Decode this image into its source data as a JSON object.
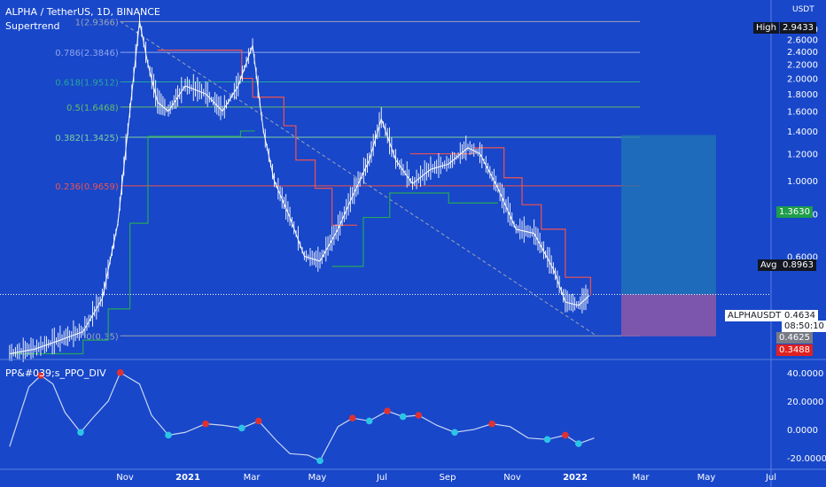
{
  "header": {
    "symbol_line": "ALPHA / TetherUS, 1D, BINANCE",
    "indicator": "Supertrend",
    "currency": "USDT",
    "sub_indicator": "PP&#039;s_PPO_DIV"
  },
  "price_tags": {
    "high_label": "High",
    "high_value": "2.9433",
    "target_value": "1.3630",
    "avg_label": "Avg",
    "avg_value": "0.8963",
    "symbol_label": "ALPHAUSDT",
    "last_value": "0.4634",
    "countdown": "08:50:10",
    "level2_value": "0.4625",
    "stop_value": "0.3488"
  },
  "colors": {
    "background": "#1847c9",
    "candle": "#ffffff",
    "supertrend_up": "#26a65b",
    "supertrend_down": "#ef5350",
    "fib_0": "#9aa4b6",
    "fib_0236": "#ef5350",
    "fib_0382": "#7fcf9e",
    "fib_05": "#66bb6a",
    "fib_0618": "#26a69a",
    "fib_0786": "#90a4ec",
    "fib_1": "#9aa4b6",
    "target_box": "#1f77b4",
    "stop_box": "#8e59a8",
    "ppo_line": "#c9d6f5",
    "bull_dot": "#2cc5e6",
    "bear_dot": "#e03131"
  },
  "chart_data": [
    {
      "type": "line",
      "title": "ALPHA / TetherUS, 1D, BINANCE",
      "yscale": "log",
      "ylim": [
        0.3,
        3.05
      ],
      "y_ticks": [
        "2.8000",
        "2.6000",
        "2.4000",
        "2.2000",
        "2.0000",
        "1.8000",
        "1.6000",
        "1.4000",
        "1.2000",
        "1.0000",
        "0.8000",
        "0.6000"
      ],
      "x_ticks": [
        "Nov",
        "2021",
        "Mar",
        "May",
        "Jul",
        "Sep",
        "Nov",
        "2022",
        "Mar",
        "May",
        "Jul"
      ],
      "xlim": [
        "2020-10-12",
        "2022-07-15"
      ],
      "fib_levels": [
        {
          "ratio": "1",
          "value": "2.9366",
          "label": "1(2.9366)"
        },
        {
          "ratio": "0.786",
          "value": "2.3846",
          "label": "0.786(2.3846)"
        },
        {
          "ratio": "0.618",
          "value": "1.9512",
          "label": "0.618(1.9512)"
        },
        {
          "ratio": "0.5",
          "value": "1.6468",
          "label": "0.5(1.6468)"
        },
        {
          "ratio": "0.382",
          "value": "1.3425",
          "label": "0.382(1.3425)"
        },
        {
          "ratio": "0.236",
          "value": "0.9659",
          "label": "0.236(0.9659)"
        },
        {
          "ratio": "0",
          "value": "0.35",
          "label": "0(0.35)"
        }
      ],
      "series": [
        {
          "name": "ALPHAUSDT",
          "x": [
            "2020-10-20",
            "2020-11-10",
            "2020-12-01",
            "2020-12-20",
            "2021-01-05",
            "2021-01-18",
            "2021-01-28",
            "2021-02-05",
            "2021-02-12",
            "2021-02-20",
            "2021-03-01",
            "2021-03-15",
            "2021-04-01",
            "2021-04-15",
            "2021-04-28",
            "2021-05-10",
            "2021-05-19",
            "2021-05-28",
            "2021-06-10",
            "2021-06-22",
            "2021-07-05",
            "2021-07-20",
            "2021-08-01",
            "2021-08-15",
            "2021-08-25",
            "2021-09-06",
            "2021-09-20",
            "2021-10-05",
            "2021-10-20",
            "2021-11-05",
            "2021-11-15",
            "2021-11-30",
            "2021-12-15",
            "2021-12-30",
            "2022-01-15",
            "2022-01-25",
            "2022-02-05",
            "2022-02-14"
          ],
          "y": [
            0.31,
            0.32,
            0.34,
            0.36,
            0.45,
            0.75,
            1.6,
            2.94,
            2.2,
            1.7,
            1.6,
            1.9,
            1.8,
            1.6,
            1.9,
            2.5,
            1.4,
            1.0,
            0.78,
            0.6,
            0.58,
            0.72,
            0.9,
            1.15,
            1.52,
            1.15,
            0.98,
            1.08,
            1.12,
            1.25,
            1.2,
            0.95,
            0.72,
            0.7,
            0.55,
            0.44,
            0.43,
            0.46
          ]
        },
        {
          "name": "Supertrend up",
          "x": [
            "2020-10-20",
            "2020-12-20",
            "2021-01-10",
            "2021-01-28",
            "2021-02-12",
            "2021-03-01",
            "2021-03-31",
            "2021-04-30",
            "2021-05-12",
            "2021-05-24",
            "2021-07-15",
            "2021-08-10",
            "2021-09-01",
            "2021-09-20",
            "2021-10-20",
            "2021-11-15",
            "2021-11-30"
          ],
          "y": [
            0.31,
            0.34,
            0.42,
            0.75,
            1.35,
            1.35,
            1.35,
            1.4,
            1.4,
            null,
            0.56,
            0.78,
            0.92,
            0.92,
            0.86,
            0.86,
            0.86
          ]
        },
        {
          "name": "Supertrend down",
          "x": [
            "2021-02-20",
            "2021-03-31",
            "2021-05-01",
            "2021-05-10",
            "2021-05-26",
            "2021-06-05",
            "2021-06-15",
            "2021-07-01",
            "2021-07-15",
            "2021-08-05",
            "2021-09-10",
            "2021-09-18",
            "2021-10-01",
            "2021-10-20",
            "2021-11-10",
            "2021-11-25",
            "2021-12-05",
            "2021-12-20",
            "2022-01-05",
            "2022-01-25",
            "2022-02-15"
          ],
          "y": [
            2.42,
            2.42,
            2.0,
            1.76,
            1.76,
            1.45,
            1.15,
            0.95,
            0.74,
            0.74,
            null,
            1.2,
            1.2,
            1.2,
            1.25,
            1.25,
            1.02,
            0.85,
            0.72,
            0.52,
            0.46
          ]
        }
      ]
    },
    {
      "type": "line",
      "title": "PP&#039;s_PPO_DIV",
      "ylim": [
        -28,
        48
      ],
      "y_ticks": [
        "40.0000",
        "20.0000",
        "0.0000",
        "-20.0000"
      ],
      "series": [
        {
          "name": "PPO",
          "x": [
            "2020-10-20",
            "2020-11-05",
            "2020-11-15",
            "2020-11-25",
            "2020-12-05",
            "2020-12-18",
            "2020-12-28",
            "2021-01-10",
            "2021-01-20",
            "2021-02-05",
            "2021-02-15",
            "2021-03-01",
            "2021-03-15",
            "2021-04-01",
            "2021-04-15",
            "2021-05-01",
            "2021-05-15",
            "2021-05-30",
            "2021-06-10",
            "2021-06-25",
            "2021-07-05",
            "2021-07-20",
            "2021-08-01",
            "2021-08-15",
            "2021-08-30",
            "2021-09-12",
            "2021-09-25",
            "2021-10-10",
            "2021-10-25",
            "2021-11-10",
            "2021-11-25",
            "2021-12-10",
            "2021-12-25",
            "2022-01-10",
            "2022-01-25",
            "2022-02-05",
            "2022-02-18"
          ],
          "y": [
            -12,
            30,
            38,
            32,
            12,
            -2,
            8,
            20,
            40,
            32,
            10,
            -4,
            -2,
            4,
            3,
            1,
            6,
            -8,
            -17,
            -18,
            -22,
            2,
            8,
            6,
            13,
            9,
            10,
            3,
            -2,
            0,
            4,
            2,
            -6,
            -7,
            -4,
            -10,
            -6
          ]
        }
      ]
    }
  ]
}
